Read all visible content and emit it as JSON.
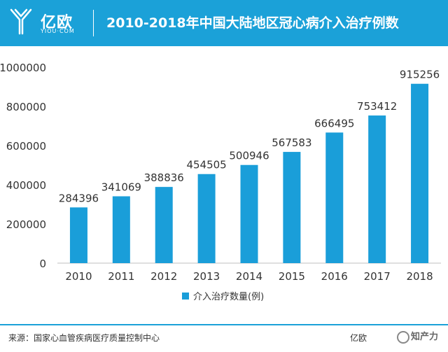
{
  "header": {
    "logo_cn": "亿欧",
    "logo_en": "YIOU·COM",
    "title": "2010-2018年中国大陆地区冠心病介入治疗例数"
  },
  "footer": {
    "source": "来源：国家心血管疾病医疗质量控制中心",
    "brand": "亿欧",
    "watermark": "知产力"
  },
  "colors": {
    "accent": "#1ba1d8",
    "bar": "#1a9ed9"
  },
  "chart_data": {
    "type": "bar",
    "title": "",
    "xlabel": "",
    "ylabel": "",
    "categories": [
      "2010",
      "2011",
      "2012",
      "2013",
      "2014",
      "2015",
      "2016",
      "2017",
      "2018"
    ],
    "series": [
      {
        "name": "介入治疗数量(例)",
        "values": [
          284396,
          341069,
          388836,
          454505,
          500946,
          567583,
          666495,
          753412,
          915256
        ]
      }
    ],
    "ylim": [
      0,
      1000000
    ],
    "yticks": [
      "0",
      "200000",
      "400000",
      "600000",
      "800000",
      "1000000"
    ],
    "grid": false,
    "legend_position": "bottom"
  }
}
